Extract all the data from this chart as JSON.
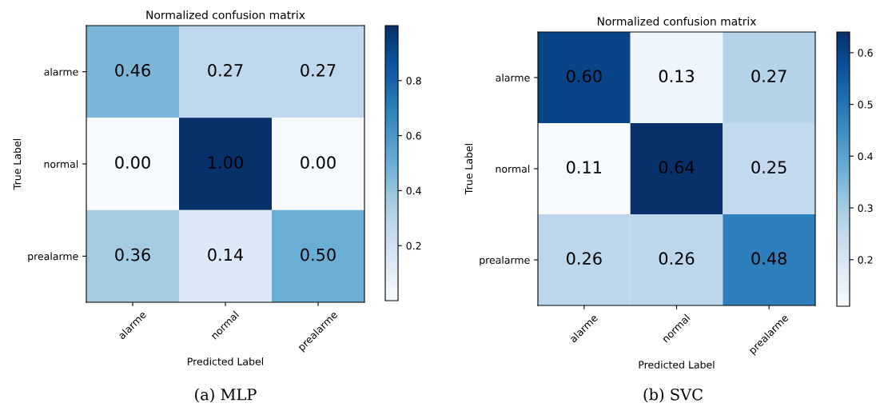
{
  "chart_data": [
    {
      "type": "heatmap",
      "title": "Normalized confusion matrix",
      "xlabel": "Predicted Label",
      "ylabel": "True Label",
      "categories": [
        "alarme",
        "normal",
        "prealarme"
      ],
      "y_categories": [
        "alarme",
        "normal",
        "prealarme"
      ],
      "cells": [
        [
          0.46,
          0.27,
          0.27
        ],
        [
          0.0,
          1.0,
          0.0
        ],
        [
          0.36,
          0.14,
          0.5
        ]
      ],
      "cell_labels": [
        [
          "0.46",
          "0.27",
          "0.27"
        ],
        [
          "0.00",
          "1.00",
          "0.00"
        ],
        [
          "0.36",
          "0.14",
          "0.50"
        ]
      ],
      "clim": [
        0.0,
        1.0
      ],
      "cticks": [
        0.2,
        0.4,
        0.6,
        0.8
      ],
      "annotations": [
        "(a) MLP"
      ]
    },
    {
      "type": "heatmap",
      "title": "Normalized confusion matrix",
      "xlabel": "Predicted Label",
      "ylabel": "True Label",
      "categories": [
        "alarme",
        "normal",
        "prealarme"
      ],
      "y_categories": [
        "alarme",
        "normal",
        "prealarme"
      ],
      "cells": [
        [
          0.6,
          0.13,
          0.27
        ],
        [
          0.11,
          0.64,
          0.25
        ],
        [
          0.26,
          0.26,
          0.48
        ]
      ],
      "cell_labels": [
        [
          "0.60",
          "0.13",
          "0.27"
        ],
        [
          "0.11",
          "0.64",
          "0.25"
        ],
        [
          "0.26",
          "0.26",
          "0.48"
        ]
      ],
      "clim": [
        0.11,
        0.64
      ],
      "cticks": [
        0.2,
        0.3,
        0.4,
        0.5,
        0.6
      ],
      "annotations": [
        "(b) SVC"
      ]
    }
  ]
}
